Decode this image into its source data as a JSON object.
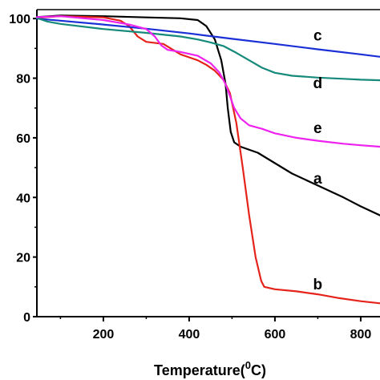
{
  "chart_data": {
    "type": "line",
    "xlabel": "Temperature(",
    "xlabel_sup": "0",
    "xlabel_suffix": "C)",
    "ylabel": "",
    "xlim": [
      45,
      845
    ],
    "ylim": [
      0,
      103
    ],
    "x_ticks": [
      200,
      400,
      600,
      800
    ],
    "y_ticks": [
      0,
      20,
      40,
      60,
      80,
      100
    ],
    "x_tick_labels": [
      "200",
      "400",
      "600",
      "800"
    ],
    "y_tick_labels": [
      "0",
      "20",
      "40",
      "60",
      "80",
      "100"
    ],
    "series": [
      {
        "name": "a",
        "color": "#000000",
        "points": [
          [
            45,
            100.5
          ],
          [
            100,
            101
          ],
          [
            200,
            100.8
          ],
          [
            300,
            100.4
          ],
          [
            380,
            100.1
          ],
          [
            420,
            99.5
          ],
          [
            440,
            97.5
          ],
          [
            460,
            93
          ],
          [
            475,
            86
          ],
          [
            485,
            78
          ],
          [
            490,
            70
          ],
          [
            497,
            62
          ],
          [
            505,
            58.5
          ],
          [
            520,
            57
          ],
          [
            560,
            55
          ],
          [
            600,
            51.5
          ],
          [
            640,
            48
          ],
          [
            700,
            44
          ],
          [
            760,
            40
          ],
          [
            800,
            37
          ],
          [
            845,
            34
          ]
        ]
      },
      {
        "name": "b",
        "color": "#e5231a",
        "points": [
          [
            45,
            100.3
          ],
          [
            100,
            100.8
          ],
          [
            200,
            100.4
          ],
          [
            240,
            99.3
          ],
          [
            260,
            97.5
          ],
          [
            280,
            94
          ],
          [
            300,
            92.2
          ],
          [
            340,
            91.5
          ],
          [
            380,
            88
          ],
          [
            400,
            87
          ],
          [
            420,
            86
          ],
          [
            440,
            84.5
          ],
          [
            460,
            82.5
          ],
          [
            480,
            79.5
          ],
          [
            495,
            75
          ],
          [
            510,
            65
          ],
          [
            525,
            50
          ],
          [
            540,
            34
          ],
          [
            555,
            20
          ],
          [
            568,
            12
          ],
          [
            575,
            10
          ],
          [
            600,
            9.2
          ],
          [
            650,
            8.5
          ],
          [
            700,
            7.5
          ],
          [
            750,
            6.2
          ],
          [
            800,
            5.2
          ],
          [
            845,
            4.5
          ]
        ]
      },
      {
        "name": "c",
        "color": "#1a2fd6",
        "points": [
          [
            45,
            100
          ],
          [
            100,
            99.3
          ],
          [
            200,
            98
          ],
          [
            300,
            96.6
          ],
          [
            400,
            95
          ],
          [
            500,
            93.2
          ],
          [
            600,
            91.5
          ],
          [
            700,
            89.7
          ],
          [
            800,
            88
          ],
          [
            845,
            87.2
          ]
        ]
      },
      {
        "name": "d",
        "color": "#168a7a",
        "points": [
          [
            45,
            100.2
          ],
          [
            70,
            99
          ],
          [
            100,
            98.2
          ],
          [
            200,
            96.5
          ],
          [
            300,
            95.2
          ],
          [
            380,
            94
          ],
          [
            420,
            93
          ],
          [
            450,
            92
          ],
          [
            480,
            90.8
          ],
          [
            510,
            88.5
          ],
          [
            540,
            86
          ],
          [
            570,
            83.5
          ],
          [
            600,
            81.8
          ],
          [
            640,
            80.8
          ],
          [
            700,
            80.2
          ],
          [
            760,
            79.8
          ],
          [
            800,
            79.5
          ],
          [
            845,
            79.3
          ]
        ]
      },
      {
        "name": "e",
        "color": "#ee22ee",
        "points": [
          [
            45,
            100.5
          ],
          [
            100,
            100.8
          ],
          [
            200,
            99.5
          ],
          [
            260,
            98
          ],
          [
            300,
            96.5
          ],
          [
            320,
            94
          ],
          [
            335,
            91
          ],
          [
            350,
            89.5
          ],
          [
            380,
            88.8
          ],
          [
            420,
            87.5
          ],
          [
            450,
            85
          ],
          [
            470,
            82
          ],
          [
            485,
            78
          ],
          [
            495,
            74
          ],
          [
            505,
            70
          ],
          [
            520,
            66.5
          ],
          [
            540,
            64.2
          ],
          [
            570,
            63
          ],
          [
            600,
            61.5
          ],
          [
            650,
            60
          ],
          [
            700,
            59
          ],
          [
            760,
            58
          ],
          [
            800,
            57.5
          ],
          [
            845,
            57
          ]
        ]
      }
    ],
    "curve_labels": [
      {
        "text": "c",
        "x": 625,
        "y": 94.5
      },
      {
        "text": "d",
        "x": 625,
        "y": 78.5
      },
      {
        "text": "e",
        "x": 625,
        "y": 63.5
      },
      {
        "text": "a",
        "x": 625,
        "y": 46.5
      },
      {
        "text": "b",
        "x": 625,
        "y": 11
      }
    ]
  }
}
